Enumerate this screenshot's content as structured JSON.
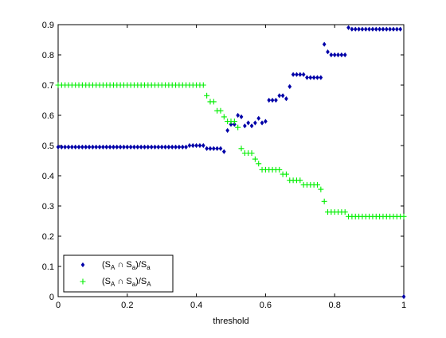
{
  "chart_data": {
    "type": "scatter",
    "title": "",
    "xlabel": "threshold",
    "ylabel": "",
    "xlim": [
      0,
      1
    ],
    "ylim": [
      0,
      0.9
    ],
    "x_ticks": [
      "0",
      "0.2",
      "0.4",
      "0.6",
      "0.8",
      "1"
    ],
    "y_ticks": [
      "0",
      "0.1",
      "0.2",
      "0.3",
      "0.4",
      "0.5",
      "0.6",
      "0.7",
      "0.8",
      "0.9"
    ],
    "grid": false,
    "legend_position": "bottom-left",
    "series": [
      {
        "name": "(S_A ∩ S_a)/S_a",
        "marker": "diamond",
        "color": "#0000a8",
        "x": [
          0,
          0.01,
          0.02,
          0.03,
          0.04,
          0.05,
          0.06,
          0.07,
          0.08,
          0.09,
          0.1,
          0.11,
          0.12,
          0.13,
          0.14,
          0.15,
          0.16,
          0.17,
          0.18,
          0.19,
          0.2,
          0.21,
          0.22,
          0.23,
          0.24,
          0.25,
          0.26,
          0.27,
          0.28,
          0.29,
          0.3,
          0.31,
          0.32,
          0.33,
          0.34,
          0.35,
          0.36,
          0.37,
          0.38,
          0.39,
          0.4,
          0.41,
          0.42,
          0.43,
          0.44,
          0.45,
          0.46,
          0.47,
          0.48,
          0.49,
          0.5,
          0.51,
          0.52,
          0.53,
          0.54,
          0.55,
          0.56,
          0.57,
          0.58,
          0.59,
          0.6,
          0.61,
          0.62,
          0.63,
          0.64,
          0.65,
          0.66,
          0.67,
          0.68,
          0.69,
          0.7,
          0.71,
          0.72,
          0.73,
          0.74,
          0.75,
          0.76,
          0.77,
          0.78,
          0.79,
          0.8,
          0.81,
          0.82,
          0.83,
          0.84,
          0.85,
          0.86,
          0.87,
          0.88,
          0.89,
          0.9,
          0.91,
          0.92,
          0.93,
          0.94,
          0.95,
          0.96,
          0.97,
          0.98,
          0.99,
          1.0
        ],
        "y": [
          0.495,
          0.495,
          0.495,
          0.495,
          0.495,
          0.495,
          0.495,
          0.495,
          0.495,
          0.495,
          0.495,
          0.495,
          0.495,
          0.495,
          0.495,
          0.495,
          0.495,
          0.495,
          0.495,
          0.495,
          0.495,
          0.495,
          0.495,
          0.495,
          0.495,
          0.495,
          0.495,
          0.495,
          0.495,
          0.495,
          0.495,
          0.495,
          0.495,
          0.495,
          0.495,
          0.495,
          0.495,
          0.495,
          0.5,
          0.5,
          0.5,
          0.5,
          0.5,
          0.49,
          0.49,
          0.49,
          0.49,
          0.49,
          0.48,
          0.55,
          0.57,
          0.57,
          0.6,
          0.595,
          0.565,
          0.575,
          0.565,
          0.575,
          0.59,
          0.575,
          0.58,
          0.65,
          0.65,
          0.65,
          0.665,
          0.665,
          0.655,
          0.695,
          0.735,
          0.735,
          0.735,
          0.735,
          0.725,
          0.725,
          0.725,
          0.725,
          0.725,
          0.835,
          0.81,
          0.8,
          0.8,
          0.8,
          0.8,
          0.8,
          0.89,
          0.885,
          0.885,
          0.885,
          0.885,
          0.885,
          0.885,
          0.885,
          0.885,
          0.885,
          0.885,
          0.885,
          0.885,
          0.885,
          0.885,
          0.885,
          0
        ]
      },
      {
        "name": "(S_A ∩ S_a)/S_A",
        "marker": "plus",
        "color": "#00ee00",
        "x": [
          0,
          0.01,
          0.02,
          0.03,
          0.04,
          0.05,
          0.06,
          0.07,
          0.08,
          0.09,
          0.1,
          0.11,
          0.12,
          0.13,
          0.14,
          0.15,
          0.16,
          0.17,
          0.18,
          0.19,
          0.2,
          0.21,
          0.22,
          0.23,
          0.24,
          0.25,
          0.26,
          0.27,
          0.28,
          0.29,
          0.3,
          0.31,
          0.32,
          0.33,
          0.34,
          0.35,
          0.36,
          0.37,
          0.38,
          0.39,
          0.4,
          0.41,
          0.42,
          0.43,
          0.44,
          0.45,
          0.46,
          0.47,
          0.48,
          0.49,
          0.5,
          0.51,
          0.52,
          0.53,
          0.54,
          0.55,
          0.56,
          0.57,
          0.58,
          0.59,
          0.6,
          0.61,
          0.62,
          0.63,
          0.64,
          0.65,
          0.66,
          0.67,
          0.68,
          0.69,
          0.7,
          0.71,
          0.72,
          0.73,
          0.74,
          0.75,
          0.76,
          0.77,
          0.78,
          0.79,
          0.8,
          0.81,
          0.82,
          0.83,
          0.84,
          0.85,
          0.86,
          0.87,
          0.88,
          0.89,
          0.9,
          0.91,
          0.92,
          0.93,
          0.94,
          0.95,
          0.96,
          0.97,
          0.98,
          0.99,
          1.0
        ],
        "y": [
          0.7,
          0.7,
          0.7,
          0.7,
          0.7,
          0.7,
          0.7,
          0.7,
          0.7,
          0.7,
          0.7,
          0.7,
          0.7,
          0.7,
          0.7,
          0.7,
          0.7,
          0.7,
          0.7,
          0.7,
          0.7,
          0.7,
          0.7,
          0.7,
          0.7,
          0.7,
          0.7,
          0.7,
          0.7,
          0.7,
          0.7,
          0.7,
          0.7,
          0.7,
          0.7,
          0.7,
          0.7,
          0.7,
          0.7,
          0.7,
          0.7,
          0.7,
          0.7,
          0.665,
          0.645,
          0.645,
          0.615,
          0.615,
          0.595,
          0.58,
          0.58,
          0.58,
          0.56,
          0.49,
          0.475,
          0.475,
          0.475,
          0.455,
          0.44,
          0.42,
          0.42,
          0.42,
          0.42,
          0.42,
          0.42,
          0.405,
          0.405,
          0.385,
          0.385,
          0.385,
          0.385,
          0.37,
          0.37,
          0.37,
          0.37,
          0.37,
          0.355,
          0.315,
          0.28,
          0.28,
          0.28,
          0.28,
          0.28,
          0.28,
          0.265,
          0.265,
          0.265,
          0.265,
          0.265,
          0.265,
          0.265,
          0.265,
          0.265,
          0.265,
          0.265,
          0.265,
          0.265,
          0.265,
          0.265,
          0.265,
          0.265
        ]
      }
    ],
    "legend": [
      {
        "pre": "(S",
        "sub1": "A",
        "mid": " ∩ S",
        "sub2": "a",
        "post": ")/S",
        "sub3": "a"
      },
      {
        "pre": "(S",
        "sub1": "A",
        "mid": " ∩ S",
        "sub2": "a",
        "post": ")/S",
        "sub3": "A"
      }
    ]
  }
}
